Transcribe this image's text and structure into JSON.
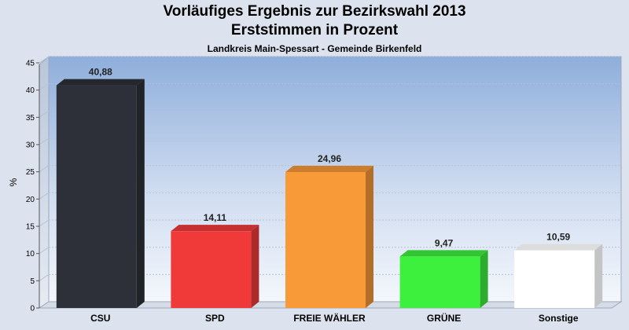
{
  "chart_data": {
    "type": "bar",
    "title": "Vorläufiges Ergebnis zur Bezirkswahl 2013",
    "title2": "Erststimmen in Prozent",
    "subtitle": "Landkreis Main-Spessart - Gemeinde Birkenfeld",
    "ylabel": "%",
    "xlabel": "",
    "ylim": [
      0,
      45
    ],
    "yticks": [
      0,
      5,
      10,
      15,
      20,
      25,
      30,
      35,
      40,
      45
    ],
    "categories": [
      "CSU",
      "SPD",
      "FREIE WÄHLER",
      "GRÜNE",
      "Sonstige"
    ],
    "values": [
      40.88,
      14.11,
      24.96,
      9.47,
      10.59
    ],
    "value_labels": [
      "40,88",
      "14,11",
      "24,96",
      "9,47",
      "10,59"
    ],
    "colors": [
      "#2d3038",
      "#f03a3a",
      "#f99a38",
      "#3ef03e",
      "#ffffff"
    ],
    "grid": true
  }
}
